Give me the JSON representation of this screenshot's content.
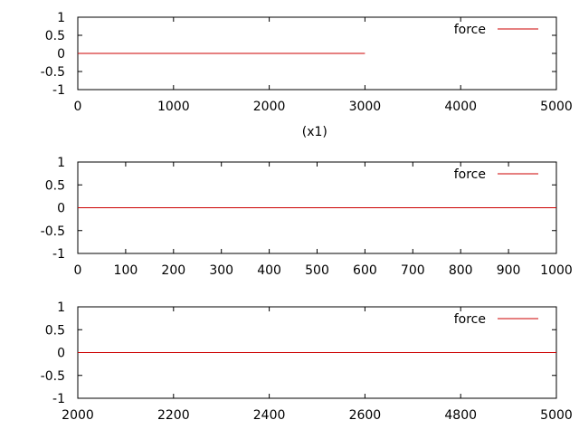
{
  "chart_data": [
    {
      "type": "line",
      "xlabel": "(x1)",
      "xlim": [
        0,
        5000
      ],
      "ylim": [
        -1,
        1
      ],
      "x_ticks": [
        "0",
        "1000",
        "2000",
        "3000",
        "4000",
        "5000"
      ],
      "y_ticks": [
        "1",
        "0.5",
        "0",
        "-0.5",
        "-1"
      ],
      "legend_position": "top-right",
      "series": [
        {
          "name": "force",
          "color": "#cc0000",
          "x": [
            0,
            3000
          ],
          "y": [
            0,
            0
          ]
        }
      ]
    },
    {
      "type": "line",
      "xlabel": "",
      "xlim": [
        0,
        1000
      ],
      "ylim": [
        -1,
        1
      ],
      "x_ticks": [
        "0",
        "100",
        "200",
        "300",
        "400",
        "500",
        "600",
        "700",
        "800",
        "900",
        "1000"
      ],
      "y_ticks": [
        "1",
        "0.5",
        "0",
        "-0.5",
        "-1"
      ],
      "legend_position": "top-right",
      "series": [
        {
          "name": "force",
          "color": "#cc0000",
          "x": [
            0,
            1000
          ],
          "y": [
            0,
            0
          ]
        }
      ]
    },
    {
      "type": "line",
      "xlabel": "",
      "xlim": [
        2000,
        5000
      ],
      "ylim": [
        -1,
        1
      ],
      "x_ticks": [
        "2000",
        "2200",
        "2400",
        "2600",
        "4800",
        "5000"
      ],
      "y_ticks": [
        "1",
        "0.5",
        "0",
        "-0.5",
        "-1"
      ],
      "legend_position": "top-right",
      "series": [
        {
          "name": "force",
          "color": "#cc0000",
          "x": [
            2000,
            5000
          ],
          "y": [
            0,
            0
          ]
        }
      ]
    }
  ]
}
